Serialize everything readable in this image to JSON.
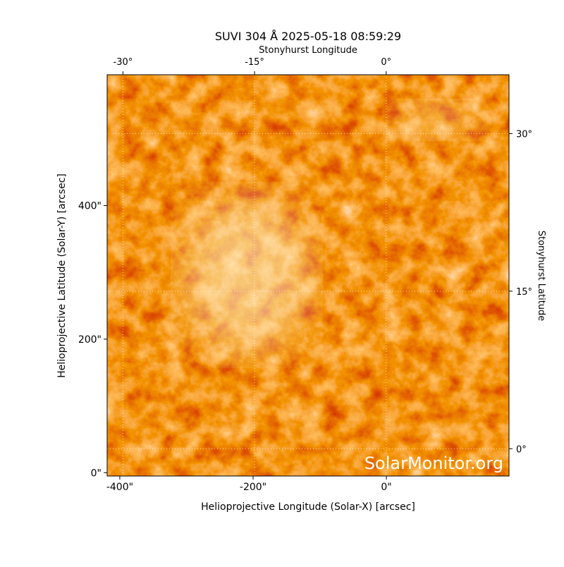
{
  "chart_data": {
    "type": "image",
    "title": "SUVI 304 Å 2025-05-18 08:59:29",
    "xlabel": "Helioprojective Longitude (Solar-X) [arcsec]",
    "ylabel": "Helioprojective Latitude (Solar-Y) [arcsec]",
    "x2label": "Stonyhurst Longitude",
    "y2label": "Stonyhurst Latitude",
    "watermark": "SolarMonitor.org",
    "xlim": [
      -419,
      184
    ],
    "ylim": [
      -5,
      596
    ],
    "xticks": [
      {
        "value": -400,
        "label": "-400\""
      },
      {
        "value": -200,
        "label": "-200\""
      },
      {
        "value": 0,
        "label": "0\""
      }
    ],
    "yticks": [
      {
        "value": 0,
        "label": "0\""
      },
      {
        "value": 200,
        "label": "200\""
      },
      {
        "value": 400,
        "label": "400\""
      }
    ],
    "x2lim": [
      -31.8,
      14
    ],
    "x2ticks": [
      {
        "value": -30,
        "label": "-30°"
      },
      {
        "value": -15,
        "label": "-15°"
      },
      {
        "value": 0,
        "label": "0°"
      }
    ],
    "y2lim": [
      -2.6,
      35.6
    ],
    "y2ticks": [
      {
        "value": 0,
        "label": "0°"
      },
      {
        "value": 15,
        "label": "15°"
      },
      {
        "value": 30,
        "label": "30°"
      }
    ],
    "grid": true
  }
}
